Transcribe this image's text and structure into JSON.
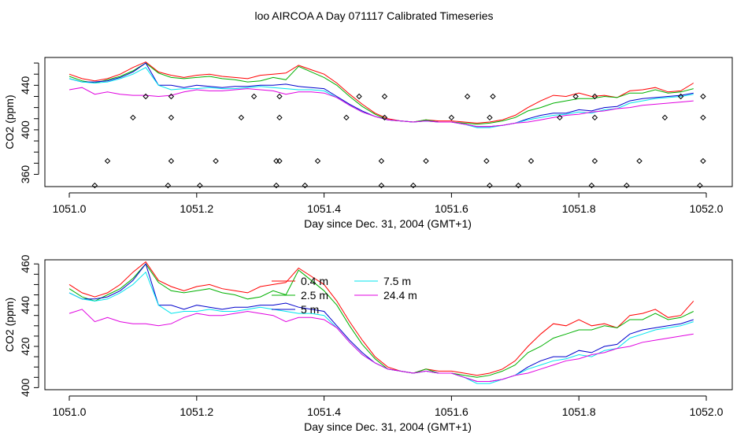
{
  "title": "loo AIRCOA A  Day 071117  Calibrated Timeseries",
  "colors": {
    "0.4 m": "#ff0000",
    "2.5 m": "#00b000",
    "5 m": "#0000cc",
    "7.5 m": "#00e5ee",
    "24.4 m": "#e000e0",
    "markers": "#000000"
  },
  "chart_data": [
    {
      "type": "line",
      "panel": "top",
      "xlabel": "Day since Dec. 31, 2004 (GMT+1)",
      "ylabel": "CO2 (ppm)",
      "xlim": [
        1051.0,
        1052.0
      ],
      "ylim": [
        349,
        465
      ],
      "x_ticks": [
        "1051.0",
        "1051.2",
        "1051.4",
        "1051.6",
        "1051.8",
        "1052.0"
      ],
      "y_ticks": [
        "360",
        "400",
        "440"
      ],
      "grid": false,
      "markers": {
        "symbol": "diamond",
        "x": [
          1051.04,
          1051.06,
          1051.1,
          1051.12,
          1051.155,
          1051.16,
          1051.16,
          1051.16,
          1051.205,
          1051.23,
          1051.27,
          1051.29,
          1051.325,
          1051.325,
          1051.33,
          1051.33,
          1051.33,
          1051.37,
          1051.39,
          1051.435,
          1051.455,
          1051.49,
          1051.49,
          1051.495,
          1051.495,
          1051.54,
          1051.56,
          1051.6,
          1051.625,
          1051.66,
          1051.655,
          1051.66,
          1051.665,
          1051.705,
          1051.725,
          1051.77,
          1051.795,
          1051.82,
          1051.825,
          1051.825,
          1051.825,
          1051.875,
          1051.895,
          1051.935,
          1051.96,
          1051.99,
          1051.995,
          1051.995,
          1051.995
        ],
        "y": [
          350,
          372,
          411,
          430,
          350,
          372,
          411,
          430,
          350,
          372,
          411,
          430,
          350,
          372,
          411,
          430,
          372,
          350,
          372,
          411,
          430,
          350,
          372,
          411,
          430,
          350,
          372,
          411,
          430,
          350,
          372,
          411,
          430,
          350,
          372,
          411,
          430,
          350,
          372,
          411,
          430,
          350,
          372,
          411,
          430,
          350,
          372,
          411,
          430
        ]
      }
    },
    {
      "type": "line",
      "panel": "bottom",
      "xlabel": "Day since Dec. 31, 2004 (GMT+1)",
      "ylabel": "CO2 (ppm)",
      "xlim": [
        1051.0,
        1052.0
      ],
      "ylim": [
        399,
        462
      ],
      "x_ticks": [
        "1051.0",
        "1051.2",
        "1051.4",
        "1051.6",
        "1051.8",
        "1052.0"
      ],
      "y_ticks": [
        "400",
        "420",
        "440",
        "460"
      ],
      "grid": false,
      "legend": {
        "placement": "top-center",
        "entries": [
          "0.4 m",
          "2.5 m",
          "5 m",
          "7.5 m",
          "24.4 m"
        ]
      }
    }
  ],
  "series": [
    {
      "name": "0.4 m",
      "x": [
        1051.0,
        1051.02,
        1051.04,
        1051.06,
        1051.08,
        1051.1,
        1051.12,
        1051.14,
        1051.16,
        1051.18,
        1051.2,
        1051.22,
        1051.24,
        1051.26,
        1051.28,
        1051.3,
        1051.32,
        1051.34,
        1051.36,
        1051.38,
        1051.4,
        1051.42,
        1051.44,
        1051.46,
        1051.48,
        1051.5,
        1051.52,
        1051.54,
        1051.56,
        1051.58,
        1051.6,
        1051.62,
        1051.64,
        1051.66,
        1051.68,
        1051.7,
        1051.72,
        1051.74,
        1051.76,
        1051.78,
        1051.8,
        1051.82,
        1051.84,
        1051.86,
        1051.88,
        1051.9,
        1051.92,
        1051.94,
        1051.96,
        1051.98
      ],
      "y": [
        450,
        446,
        444,
        446,
        450,
        456,
        461,
        452,
        449,
        447,
        449,
        450,
        448,
        447,
        446,
        449,
        450,
        451,
        458,
        454,
        450,
        442,
        432,
        423,
        415,
        410,
        408,
        407,
        409,
        408,
        408,
        407,
        406,
        407,
        409,
        413,
        420,
        426,
        431,
        430,
        433,
        430,
        431,
        429,
        435,
        436,
        438,
        434,
        435,
        442
      ]
    },
    {
      "name": "2.5 m",
      "x": [
        1051.0,
        1051.02,
        1051.04,
        1051.06,
        1051.08,
        1051.1,
        1051.12,
        1051.14,
        1051.16,
        1051.18,
        1051.2,
        1051.22,
        1051.24,
        1051.26,
        1051.28,
        1051.3,
        1051.32,
        1051.34,
        1051.36,
        1051.38,
        1051.4,
        1051.42,
        1051.44,
        1051.46,
        1051.48,
        1051.5,
        1051.52,
        1051.54,
        1051.56,
        1051.58,
        1051.6,
        1051.62,
        1051.64,
        1051.66,
        1051.68,
        1051.7,
        1051.72,
        1051.74,
        1051.76,
        1051.78,
        1051.8,
        1051.82,
        1051.84,
        1051.86,
        1051.88,
        1051.9,
        1051.92,
        1051.94,
        1051.96,
        1051.98
      ],
      "y": [
        448,
        444,
        442,
        445,
        448,
        453,
        460,
        451,
        447,
        446,
        447,
        448,
        446,
        445,
        443,
        444,
        447,
        445,
        457,
        452,
        447,
        440,
        430,
        421,
        414,
        409,
        408,
        407,
        409,
        407,
        407,
        406,
        405,
        406,
        408,
        411,
        417,
        420,
        424,
        426,
        428,
        428,
        430,
        429,
        433,
        433,
        436,
        433,
        434,
        437
      ]
    },
    {
      "name": "5 m",
      "x": [
        1051.0,
        1051.02,
        1051.04,
        1051.06,
        1051.08,
        1051.1,
        1051.12,
        1051.14,
        1051.16,
        1051.18,
        1051.2,
        1051.22,
        1051.24,
        1051.26,
        1051.28,
        1051.3,
        1051.32,
        1051.34,
        1051.36,
        1051.38,
        1051.4,
        1051.42,
        1051.44,
        1051.46,
        1051.48,
        1051.5,
        1051.52,
        1051.54,
        1051.56,
        1051.58,
        1051.6,
        1051.62,
        1051.64,
        1051.66,
        1051.68,
        1051.7,
        1051.72,
        1051.74,
        1051.76,
        1051.78,
        1051.8,
        1051.82,
        1051.84,
        1051.86,
        1051.88,
        1051.9,
        1051.92,
        1051.94,
        1051.96,
        1051.98
      ],
      "y": [
        446,
        443,
        443,
        444,
        447,
        452,
        460,
        440,
        440,
        438,
        440,
        439,
        438,
        439,
        439,
        440,
        440,
        441,
        439,
        438,
        437,
        430,
        423,
        417,
        412,
        409,
        408,
        407,
        408,
        407,
        407,
        405,
        403,
        403,
        404,
        406,
        410,
        413,
        415,
        415,
        418,
        417,
        420,
        421,
        426,
        428,
        429,
        430,
        431,
        433
      ]
    },
    {
      "name": "7.5 m",
      "x": [
        1051.0,
        1051.02,
        1051.04,
        1051.06,
        1051.08,
        1051.1,
        1051.12,
        1051.14,
        1051.16,
        1051.18,
        1051.2,
        1051.22,
        1051.24,
        1051.26,
        1051.28,
        1051.3,
        1051.32,
        1051.34,
        1051.36,
        1051.38,
        1051.4,
        1051.42,
        1051.44,
        1051.46,
        1051.48,
        1051.5,
        1051.52,
        1051.54,
        1051.56,
        1051.58,
        1051.6,
        1051.62,
        1051.64,
        1051.66,
        1051.68,
        1051.7,
        1051.72,
        1051.74,
        1051.76,
        1051.78,
        1051.8,
        1051.82,
        1051.84,
        1051.86,
        1051.88,
        1051.9,
        1051.92,
        1051.94,
        1051.96,
        1051.98
      ],
      "y": [
        446,
        443,
        442,
        443,
        446,
        450,
        456,
        440,
        436,
        437,
        437,
        438,
        437,
        437,
        438,
        439,
        438,
        437,
        436,
        436,
        435,
        429,
        422,
        416,
        412,
        409,
        408,
        407,
        408,
        407,
        407,
        405,
        402,
        402,
        404,
        406,
        409,
        411,
        413,
        414,
        416,
        415,
        418,
        419,
        424,
        426,
        428,
        429,
        430,
        432
      ]
    },
    {
      "name": "24.4 m",
      "x": [
        1051.0,
        1051.02,
        1051.04,
        1051.06,
        1051.08,
        1051.1,
        1051.12,
        1051.14,
        1051.16,
        1051.18,
        1051.2,
        1051.22,
        1051.24,
        1051.26,
        1051.28,
        1051.3,
        1051.32,
        1051.34,
        1051.36,
        1051.38,
        1051.4,
        1051.42,
        1051.44,
        1051.46,
        1051.48,
        1051.5,
        1051.52,
        1051.54,
        1051.56,
        1051.58,
        1051.6,
        1051.62,
        1051.64,
        1051.66,
        1051.68,
        1051.7,
        1051.72,
        1051.74,
        1051.76,
        1051.78,
        1051.8,
        1051.82,
        1051.84,
        1051.86,
        1051.88,
        1051.9,
        1051.92,
        1051.94,
        1051.96,
        1051.98
      ],
      "y": [
        436,
        438,
        432,
        434,
        432,
        431,
        431,
        430,
        431,
        434,
        436,
        435,
        435,
        436,
        437,
        436,
        435,
        432,
        434,
        434,
        433,
        429,
        422,
        416,
        412,
        409,
        408,
        407,
        408,
        407,
        407,
        405,
        403,
        403,
        404,
        406,
        407,
        409,
        411,
        413,
        414,
        416,
        417,
        419,
        420,
        422,
        423,
        424,
        425,
        426
      ]
    }
  ]
}
